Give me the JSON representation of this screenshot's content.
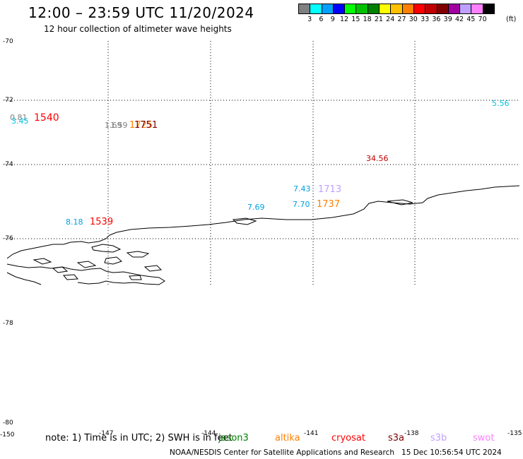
{
  "header": {
    "title": "12:00 – 23:59 UTC 11/20/2024",
    "subtitle": "12 hour collection of altimeter wave heights"
  },
  "colorbar": {
    "colors": [
      "#808080",
      "#00ffff",
      "#00a0ff",
      "#0000ff",
      "#00ff00",
      "#00c000",
      "#008000",
      "#ffff00",
      "#ffc000",
      "#ff8000",
      "#ff0000",
      "#c00000",
      "#800000",
      "#a000a0",
      "#c0a0ff",
      "#ff80ff",
      "#000000"
    ],
    "labels": [
      "3",
      "6",
      "9",
      "12",
      "15",
      "18",
      "21",
      "24",
      "27",
      "30",
      "33",
      "36",
      "39",
      "42",
      "45",
      "70"
    ],
    "unit": "(ft)"
  },
  "axes": {
    "lat_labels": [
      "-70",
      "-72",
      "-74",
      "-76",
      "-78",
      "-80"
    ],
    "lon_labels": [
      "-150",
      "-147",
      "-144",
      "-141",
      "-138",
      "-135"
    ]
  },
  "observations": [
    {
      "text": "0.81",
      "color": "#808080"
    },
    {
      "text": "3.45",
      "color": "#00c0e0"
    },
    {
      "text": "1540",
      "color": "#ff0000"
    },
    {
      "text": "1.69",
      "color": "#808080"
    },
    {
      "text": "1.59",
      "color": "#808080"
    },
    {
      "text": "1725",
      "color": "#ff8000"
    },
    {
      "text": "1751",
      "color": "#800000"
    },
    {
      "text": "5.56",
      "color": "#00c0e0"
    },
    {
      "text": "34.56",
      "color": "#c00000"
    },
    {
      "text": "7.43",
      "color": "#00a0e0"
    },
    {
      "text": "1713",
      "color": "#c0a0ff"
    },
    {
      "text": "7.69",
      "color": "#00a0e0"
    },
    {
      "text": "7.70",
      "color": "#00a0e0"
    },
    {
      "text": "1737",
      "color": "#ff8000"
    },
    {
      "text": "8.18",
      "color": "#00a0e0"
    },
    {
      "text": "1539",
      "color": "#ff0000"
    }
  ],
  "footer": {
    "note": "note:  1) Time is in UTC;  2) SWH is in feet",
    "satellites": [
      {
        "name": "jason3",
        "color": "#008000"
      },
      {
        "name": "altika",
        "color": "#ff8000"
      },
      {
        "name": "cryosat",
        "color": "#ff0000"
      },
      {
        "name": "s3a",
        "color": "#800000"
      },
      {
        "name": "s3b",
        "color": "#c0a0ff"
      },
      {
        "name": "swot",
        "color": "#ff80ff"
      }
    ],
    "credit": "NOAA/NESDIS Center for Satellite Applications and Research",
    "timestamp": "15 Dec 10:56:54 UTC 2024"
  }
}
